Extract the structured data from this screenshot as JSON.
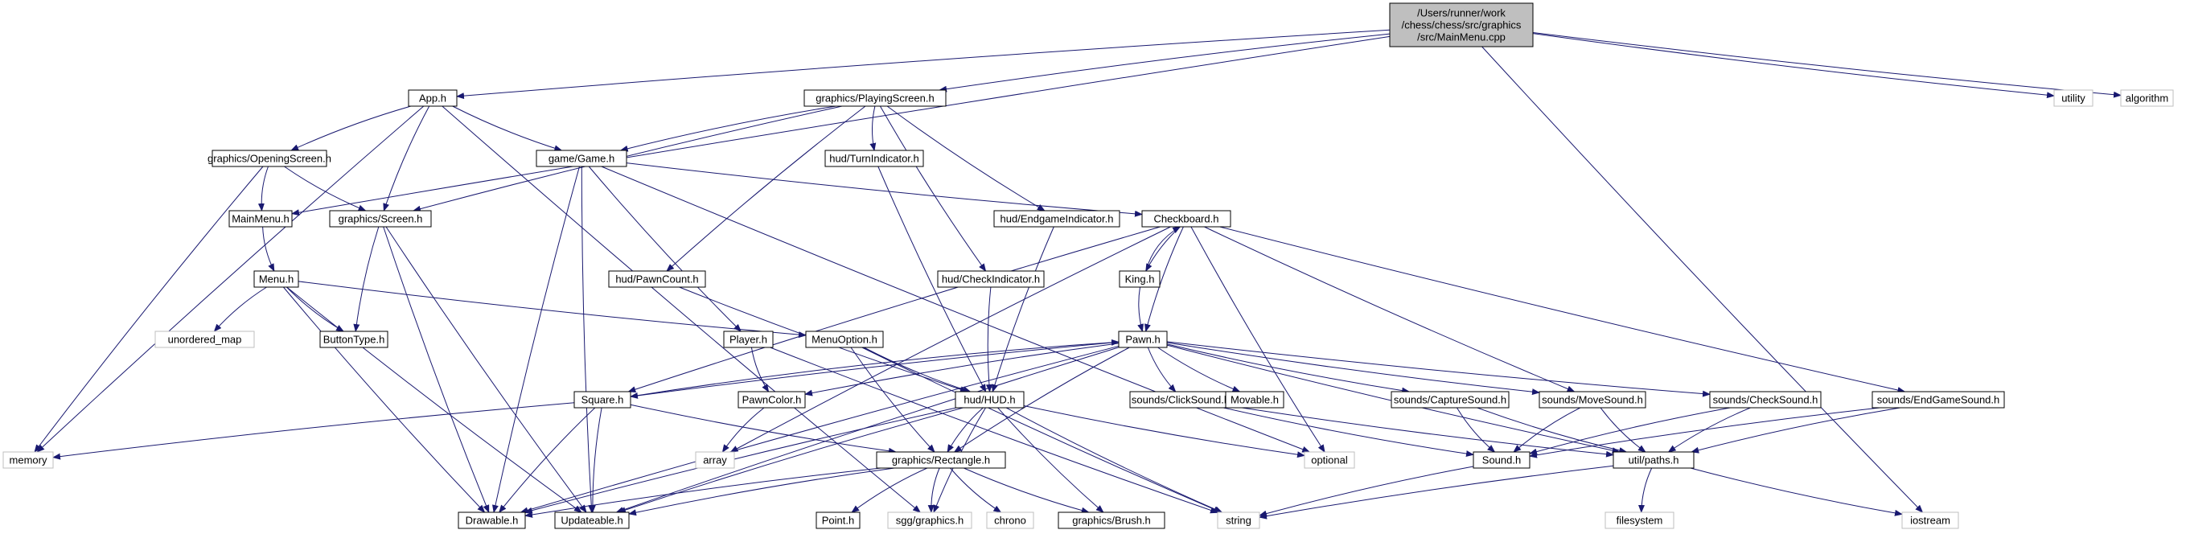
{
  "colors": {
    "edge": "#191970",
    "root_fill": "#bfbfbf",
    "node_border": "#000000",
    "external_border": "#bfbfbf",
    "text": "#000000",
    "external_text": "#4d4d4d"
  },
  "nodes": [
    {
      "id": "main",
      "lines": [
        "/Users/runner/work",
        "/chess/chess/src/graphics",
        "/src/MainMenu.cpp"
      ],
      "kind": "root"
    },
    {
      "id": "app",
      "lines": [
        "App.h"
      ],
      "kind": "header"
    },
    {
      "id": "playing",
      "lines": [
        "graphics/PlayingScreen.h"
      ],
      "kind": "header"
    },
    {
      "id": "utility",
      "lines": [
        "utility"
      ],
      "kind": "external"
    },
    {
      "id": "algorithm",
      "lines": [
        "algorithm"
      ],
      "kind": "external"
    },
    {
      "id": "opening",
      "lines": [
        "graphics/OpeningScreen.h"
      ],
      "kind": "header"
    },
    {
      "id": "game",
      "lines": [
        "game/Game.h"
      ],
      "kind": "header"
    },
    {
      "id": "turn",
      "lines": [
        "hud/TurnIndicator.h"
      ],
      "kind": "header"
    },
    {
      "id": "mainmenu",
      "lines": [
        "MainMenu.h"
      ],
      "kind": "header"
    },
    {
      "id": "screen",
      "lines": [
        "graphics/Screen.h"
      ],
      "kind": "header"
    },
    {
      "id": "endgameind",
      "lines": [
        "hud/EndgameIndicator.h"
      ],
      "kind": "header"
    },
    {
      "id": "checkboard",
      "lines": [
        "Checkboard.h"
      ],
      "kind": "header"
    },
    {
      "id": "menu",
      "lines": [
        "Menu.h"
      ],
      "kind": "header"
    },
    {
      "id": "pawncount",
      "lines": [
        "hud/PawnCount.h"
      ],
      "kind": "header"
    },
    {
      "id": "checkind",
      "lines": [
        "hud/CheckIndicator.h"
      ],
      "kind": "header"
    },
    {
      "id": "king",
      "lines": [
        "King.h"
      ],
      "kind": "header"
    },
    {
      "id": "unordered",
      "lines": [
        "unordered_map"
      ],
      "kind": "external"
    },
    {
      "id": "buttontype",
      "lines": [
        "ButtonType.h"
      ],
      "kind": "header"
    },
    {
      "id": "player",
      "lines": [
        "Player.h"
      ],
      "kind": "header"
    },
    {
      "id": "menuoption",
      "lines": [
        "MenuOption.h"
      ],
      "kind": "header"
    },
    {
      "id": "pawn",
      "lines": [
        "Pawn.h"
      ],
      "kind": "header"
    },
    {
      "id": "square",
      "lines": [
        "Square.h"
      ],
      "kind": "header"
    },
    {
      "id": "pawncolor",
      "lines": [
        "PawnColor.h"
      ],
      "kind": "header"
    },
    {
      "id": "hud",
      "lines": [
        "hud/HUD.h"
      ],
      "kind": "header"
    },
    {
      "id": "clicksound",
      "lines": [
        "sounds/ClickSound.h"
      ],
      "kind": "header"
    },
    {
      "id": "movable",
      "lines": [
        "Movable.h"
      ],
      "kind": "header"
    },
    {
      "id": "capturesound",
      "lines": [
        "sounds/CaptureSound.h"
      ],
      "kind": "header"
    },
    {
      "id": "movesound",
      "lines": [
        "sounds/MoveSound.h"
      ],
      "kind": "header"
    },
    {
      "id": "checksound",
      "lines": [
        "sounds/CheckSound.h"
      ],
      "kind": "header"
    },
    {
      "id": "endgamesound",
      "lines": [
        "sounds/EndGameSound.h"
      ],
      "kind": "header"
    },
    {
      "id": "memory",
      "lines": [
        "memory"
      ],
      "kind": "external"
    },
    {
      "id": "array",
      "lines": [
        "array"
      ],
      "kind": "external"
    },
    {
      "id": "rectangle",
      "lines": [
        "graphics/Rectangle.h"
      ],
      "kind": "header"
    },
    {
      "id": "optional",
      "lines": [
        "optional"
      ],
      "kind": "external"
    },
    {
      "id": "sound",
      "lines": [
        "Sound.h"
      ],
      "kind": "header"
    },
    {
      "id": "paths",
      "lines": [
        "util/paths.h"
      ],
      "kind": "header"
    },
    {
      "id": "drawable",
      "lines": [
        "Drawable.h"
      ],
      "kind": "header"
    },
    {
      "id": "updateable",
      "lines": [
        "Updateable.h"
      ],
      "kind": "header"
    },
    {
      "id": "point",
      "lines": [
        "Point.h"
      ],
      "kind": "header"
    },
    {
      "id": "sgg",
      "lines": [
        "sgg/graphics.h"
      ],
      "kind": "external"
    },
    {
      "id": "chrono",
      "lines": [
        "chrono"
      ],
      "kind": "external"
    },
    {
      "id": "brush",
      "lines": [
        "graphics/Brush.h"
      ],
      "kind": "header"
    },
    {
      "id": "string",
      "lines": [
        "string"
      ],
      "kind": "external"
    },
    {
      "id": "filesystem",
      "lines": [
        "filesystem"
      ],
      "kind": "external"
    },
    {
      "id": "iostream",
      "lines": [
        "iostream"
      ],
      "kind": "external"
    }
  ],
  "edges": [
    [
      "main",
      "app"
    ],
    [
      "main",
      "playing"
    ],
    [
      "main",
      "utility"
    ],
    [
      "main",
      "algorithm"
    ],
    [
      "main",
      "mainmenu"
    ],
    [
      "main",
      "iostream"
    ],
    [
      "app",
      "memory"
    ],
    [
      "app",
      "opening"
    ],
    [
      "app",
      "game"
    ],
    [
      "app",
      "screen"
    ],
    [
      "app",
      "sgg"
    ],
    [
      "playing",
      "game"
    ],
    [
      "playing",
      "screen"
    ],
    [
      "playing",
      "turn"
    ],
    [
      "playing",
      "endgameind"
    ],
    [
      "playing",
      "pawncount"
    ],
    [
      "playing",
      "checkind"
    ],
    [
      "opening",
      "mainmenu"
    ],
    [
      "opening",
      "screen"
    ],
    [
      "opening",
      "memory"
    ],
    [
      "game",
      "checkboard"
    ],
    [
      "game",
      "player"
    ],
    [
      "game",
      "drawable"
    ],
    [
      "game",
      "updateable"
    ],
    [
      "game",
      "optional"
    ],
    [
      "screen",
      "buttontype"
    ],
    [
      "screen",
      "drawable"
    ],
    [
      "screen",
      "updateable"
    ],
    [
      "mainmenu",
      "menu"
    ],
    [
      "menu",
      "unordered"
    ],
    [
      "menu",
      "buttontype"
    ],
    [
      "menu",
      "menuoption"
    ],
    [
      "menu",
      "drawable"
    ],
    [
      "menu",
      "updateable"
    ],
    [
      "turn",
      "hud"
    ],
    [
      "endgameind",
      "hud"
    ],
    [
      "pawncount",
      "hud"
    ],
    [
      "checkind",
      "hud"
    ],
    [
      "checkboard",
      "king"
    ],
    [
      "checkboard",
      "pawn"
    ],
    [
      "checkboard",
      "square"
    ],
    [
      "checkboard",
      "array"
    ],
    [
      "checkboard",
      "optional"
    ],
    [
      "checkboard",
      "endgamesound"
    ],
    [
      "checkboard",
      "movesound"
    ],
    [
      "king",
      "checkboard"
    ],
    [
      "king",
      "pawn"
    ],
    [
      "player",
      "pawncolor"
    ],
    [
      "player",
      "string"
    ],
    [
      "menuoption",
      "rectangle"
    ],
    [
      "menuoption",
      "hud"
    ],
    [
      "menuoption",
      "string"
    ],
    [
      "pawn",
      "square"
    ],
    [
      "pawn",
      "pawncolor"
    ],
    [
      "pawn",
      "clicksound"
    ],
    [
      "pawn",
      "movable"
    ],
    [
      "pawn",
      "capturesound"
    ],
    [
      "pawn",
      "movesound"
    ],
    [
      "pawn",
      "checksound"
    ],
    [
      "pawn",
      "rectangle"
    ],
    [
      "pawn",
      "drawable"
    ],
    [
      "pawn",
      "updateable"
    ],
    [
      "pawn",
      "paths"
    ],
    [
      "square",
      "pawn"
    ],
    [
      "square",
      "memory"
    ],
    [
      "square",
      "rectangle"
    ],
    [
      "square",
      "drawable"
    ],
    [
      "square",
      "updateable"
    ],
    [
      "pawncolor",
      "array"
    ],
    [
      "hud",
      "rectangle"
    ],
    [
      "hud",
      "drawable"
    ],
    [
      "hud",
      "updateable"
    ],
    [
      "hud",
      "sgg"
    ],
    [
      "hud",
      "brush"
    ],
    [
      "hud",
      "string"
    ],
    [
      "hud",
      "optional"
    ],
    [
      "clicksound",
      "sound"
    ],
    [
      "clicksound",
      "paths"
    ],
    [
      "capturesound",
      "sound"
    ],
    [
      "capturesound",
      "paths"
    ],
    [
      "movesound",
      "sound"
    ],
    [
      "movesound",
      "paths"
    ],
    [
      "checksound",
      "sound"
    ],
    [
      "checksound",
      "paths"
    ],
    [
      "endgamesound",
      "sound"
    ],
    [
      "endgamesound",
      "paths"
    ],
    [
      "rectangle",
      "point"
    ],
    [
      "rectangle",
      "sgg"
    ],
    [
      "rectangle",
      "chrono"
    ],
    [
      "rectangle",
      "brush"
    ],
    [
      "rectangle",
      "drawable"
    ],
    [
      "rectangle",
      "updateable"
    ],
    [
      "sound",
      "string"
    ],
    [
      "paths",
      "string"
    ],
    [
      "paths",
      "filesystem"
    ],
    [
      "paths",
      "iostream"
    ]
  ]
}
